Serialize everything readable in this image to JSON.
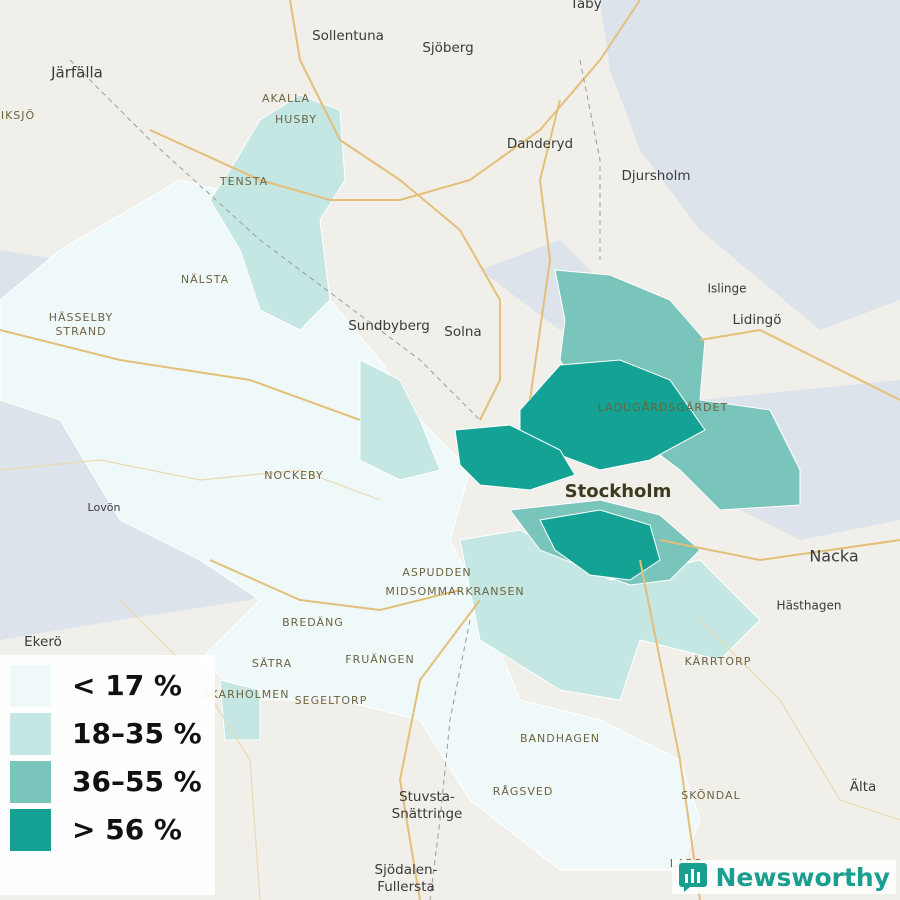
{
  "map": {
    "labels": [
      "Täby",
      "Sollentuna",
      "Sjöberg",
      "Järfälla",
      "IKSJÖ",
      "AKALLA",
      "HUSBY",
      "Danderyd",
      "Djursholm",
      "TENSTA",
      "NÄLSTA",
      "HÄSSELBY",
      "STRAND",
      "Islinge",
      "Lidingö",
      "Sundbyberg",
      "Solna",
      "LADUGÅRDSGÄRDET",
      "Stockholm",
      "NOCKEBY",
      "Lovön",
      "Nacka",
      "Hästhagen",
      "ASPUDDEN",
      "MIDSOMMARKRANSEN",
      "Ekerö",
      "BREDÄNG",
      "SÄTRA",
      "FRUÄNGEN",
      "KÄRRTORP",
      "SKARHOLMEN",
      "SEGELTORP",
      "BANDHAGEN",
      "Stuvsta-",
      "Snättringe",
      "RÅGSVED",
      "SKÖNDAL",
      "Älta",
      "Sjödalen-",
      "Fullersta",
      "LARS"
    ],
    "legend": [
      {
        "label": "< 17 %",
        "color": "#eff9f9"
      },
      {
        "label": "18–35 %",
        "color": "#c4e7e3"
      },
      {
        "label": "36–55 %",
        "color": "#79c4bb"
      },
      {
        "label": "> 56 %",
        "color": "#14a295"
      }
    ],
    "brand": "Newsworthy"
  }
}
